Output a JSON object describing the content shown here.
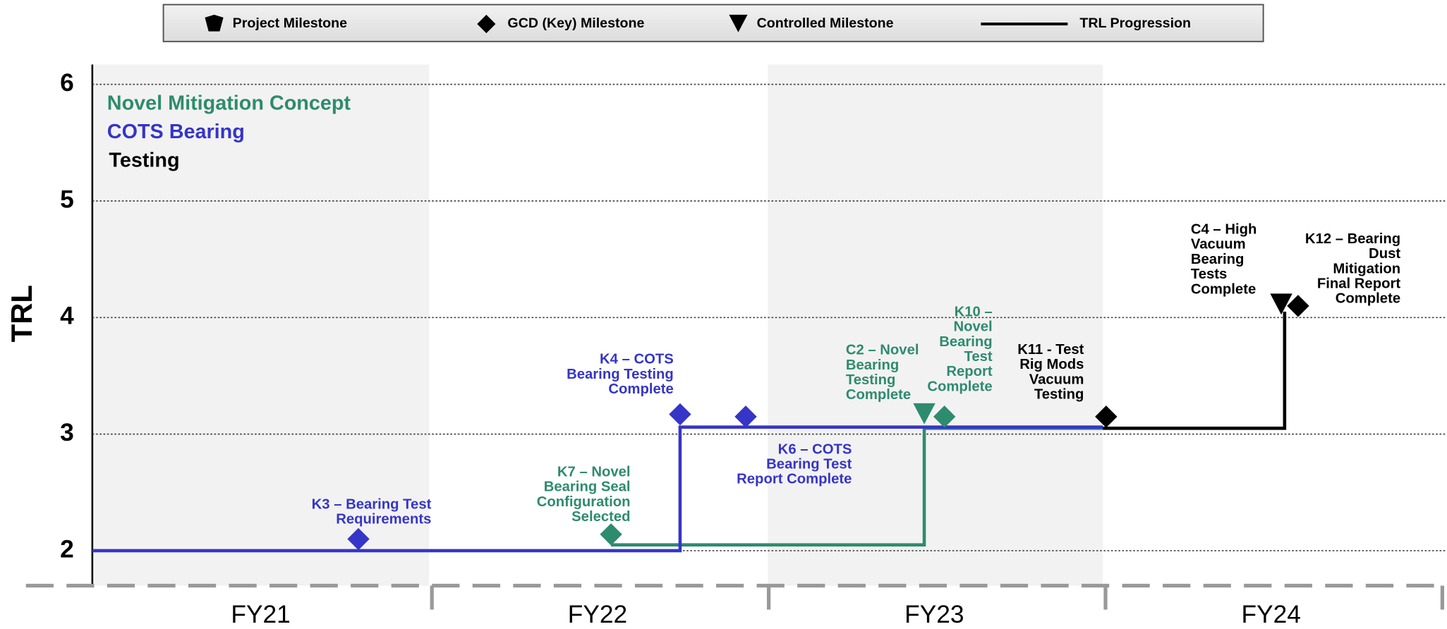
{
  "chart_data": {
    "type": "timeline",
    "y_label": "TRL",
    "categories": [
      "FY21",
      "FY22",
      "FY23",
      "FY24"
    ],
    "xlim": [
      0,
      4
    ],
    "ylim": [
      1.7,
      6.17
    ],
    "yticks": [
      2,
      3,
      4,
      5,
      6
    ],
    "grid": true,
    "legend": [
      {
        "label": "Project Milestone",
        "shape": "pentagon"
      },
      {
        "label": "GCD (Key) Milestone",
        "shape": "diamond"
      },
      {
        "label": "Controlled Milestone",
        "shape": "triangle"
      },
      {
        "label": "TRL Progression",
        "shape": "line"
      }
    ],
    "series": [
      {
        "name": "Novel Mitigation Concept",
        "color": "#2e8b6e",
        "x": [
          1.54,
          2.47,
          2.47,
          3.0
        ],
        "values": [
          2.05,
          2.05,
          3.05,
          3.05
        ]
      },
      {
        "name": "COTS Bearing",
        "color": "#3535c8",
        "x": [
          0,
          1.745,
          1.745,
          3.0
        ],
        "values": [
          2.0,
          2.0,
          3.06,
          3.06
        ]
      },
      {
        "name": "Testing",
        "color": "#000000",
        "x": [
          3.0,
          3.54,
          3.54
        ],
        "values": [
          3.05,
          3.05,
          4.05
        ]
      }
    ],
    "milestones": [
      {
        "label": [
          "K3 – Bearing Test",
          "Requirements"
        ],
        "shape": "diamond",
        "color": "#3535c8",
        "x": 0.79,
        "y": 2.1
      },
      {
        "label": [
          "K4 – COTS",
          "Bearing Testing",
          "Complete"
        ],
        "shape": "diamond",
        "color": "#3535c8",
        "x": 1.745,
        "y": 3.17
      },
      {
        "label": [
          "K6 – COTS",
          "Bearing Test",
          "Report Complete"
        ],
        "shape": "diamond",
        "color": "#3535c8",
        "x": 1.94,
        "y": 3.15
      },
      {
        "label": [
          "K7 – Novel",
          "Bearing Seal",
          "Configuration",
          "Selected"
        ],
        "shape": "diamond",
        "color": "#2e8b6e",
        "x": 1.54,
        "y": 2.14
      },
      {
        "label": [
          "C2 – Novel",
          "Bearing",
          "Testing",
          "Complete"
        ],
        "shape": "triangle",
        "color": "#2e8b6e",
        "x": 2.47,
        "y": 3.17
      },
      {
        "label": [
          "K10 –",
          "Novel",
          "Bearing",
          "Test",
          "Report",
          "Complete"
        ],
        "shape": "diamond",
        "color": "#2e8b6e",
        "x": 2.53,
        "y": 3.15
      },
      {
        "label": [
          "K11 - Test",
          "Rig Mods",
          "Vacuum",
          "Testing"
        ],
        "shape": "diamond",
        "color": "#000000",
        "x": 3.01,
        "y": 3.15
      },
      {
        "label": [
          "C4 – High",
          "Vacuum",
          "Bearing",
          "Tests",
          "Complete"
        ],
        "shape": "triangle",
        "color": "#000000",
        "x": 3.53,
        "y": 4.11
      },
      {
        "label": [
          "K12 – Bearing",
          "Dust",
          "Mitigation",
          "Final Report",
          "Complete"
        ],
        "shape": "diamond",
        "color": "#000000",
        "x": 3.58,
        "y": 4.1
      }
    ]
  }
}
